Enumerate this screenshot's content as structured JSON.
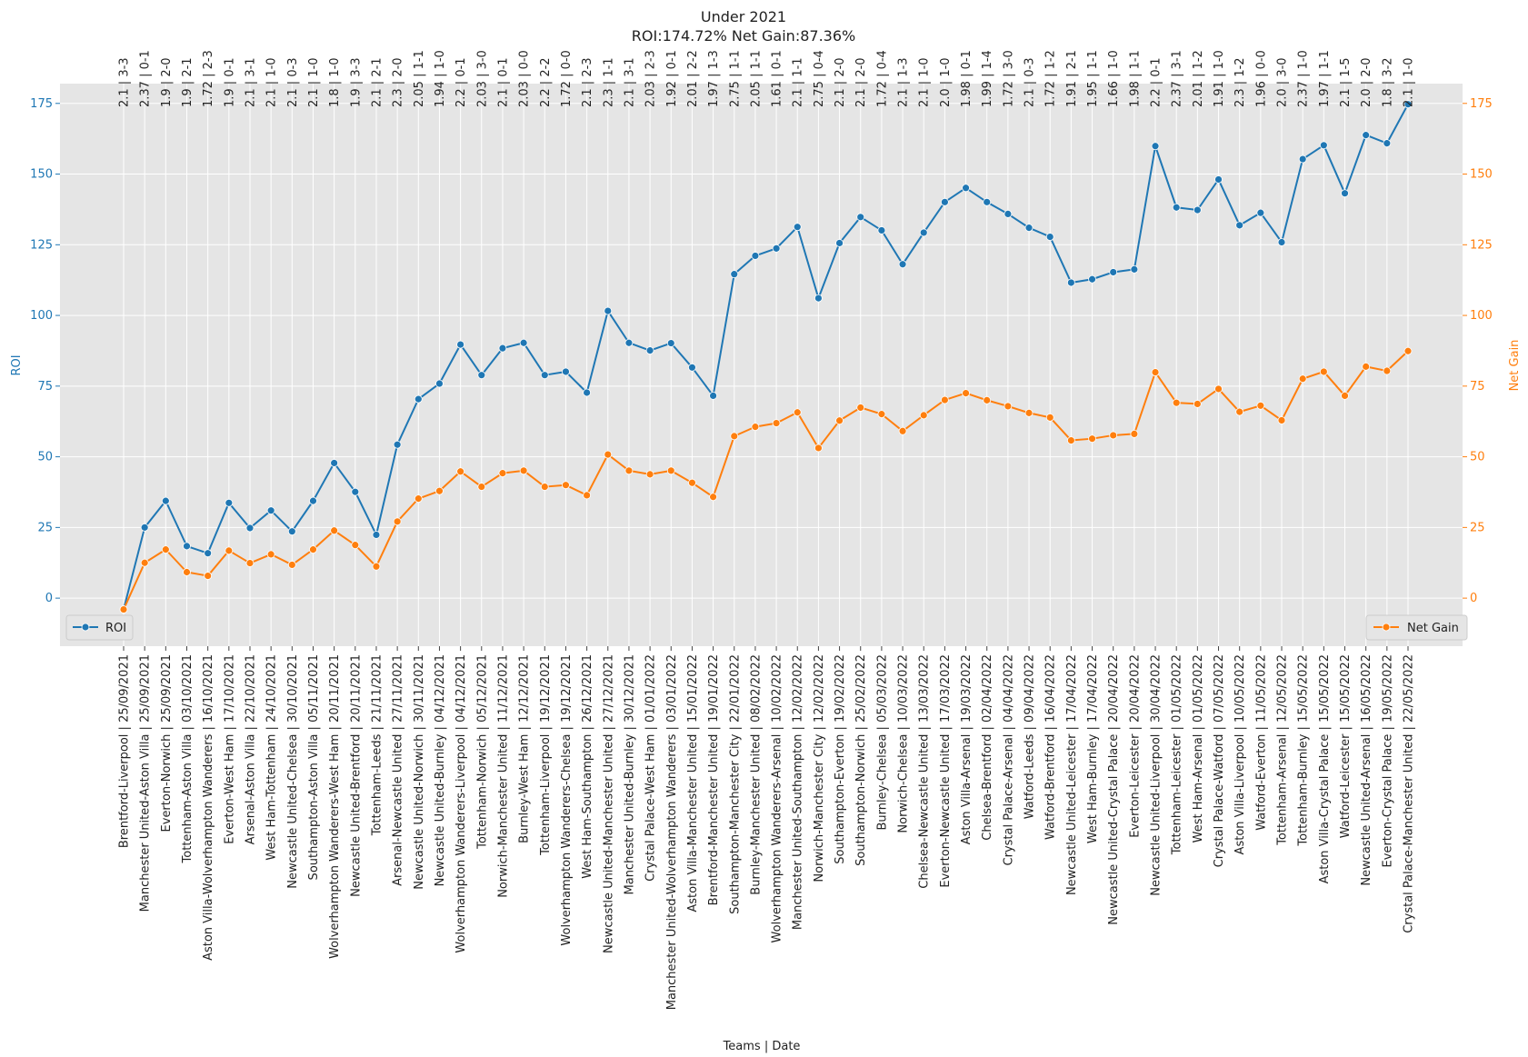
{
  "chart_data": {
    "type": "line",
    "title": "Under 2021",
    "subtitle": "ROI:174.72% Net Gain:87.36%",
    "xlabel": "Teams | Date",
    "ylabel_left": "ROI",
    "ylabel_right": "Net Gain",
    "ylim": [
      -17,
      182
    ],
    "yticks": [
      0,
      25,
      50,
      75,
      100,
      125,
      150,
      175
    ],
    "grid": true,
    "legend_left": "bottom-left",
    "legend_right": "bottom-right",
    "colors": {
      "roi": "#1f77b4",
      "net_gain": "#ff7f0e",
      "plot_bg": "#e5e5e5",
      "grid": "#ffffff"
    },
    "categories": [
      "Brentford-Liverpool | 25/09/2021",
      "Manchester United-Aston Villa | 25/09/2021",
      "Everton-Norwich | 25/09/2021",
      "Tottenham-Aston Villa | 03/10/2021",
      "Aston Villa-Wolverhampton Wanderers | 16/10/2021",
      "Everton-West Ham | 17/10/2021",
      "Arsenal-Aston Villa | 22/10/2021",
      "West Ham-Tottenham | 24/10/2021",
      "Newcastle United-Chelsea | 30/10/2021",
      "Southampton-Aston Villa | 05/11/2021",
      "Wolverhampton Wanderers-West Ham | 20/11/2021",
      "Newcastle United-Brentford | 20/11/2021",
      "Tottenham-Leeds | 21/11/2021",
      "Arsenal-Newcastle United | 27/11/2021",
      "Newcastle United-Norwich | 30/11/2021",
      "Newcastle United-Burnley | 04/12/2021",
      "Wolverhampton Wanderers-Liverpool | 04/12/2021",
      "Tottenham-Norwich | 05/12/2021",
      "Norwich-Manchester United | 11/12/2021",
      "Burnley-West Ham | 12/12/2021",
      "Tottenham-Liverpool | 19/12/2021",
      "Wolverhampton Wanderers-Chelsea | 19/12/2021",
      "West Ham-Southampton | 26/12/2021",
      "Newcastle United-Manchester United | 27/12/2021",
      "Manchester United-Burnley | 30/12/2021",
      "Crystal Palace-West Ham | 01/01/2022",
      "Manchester United-Wolverhampton Wanderers | 03/01/2022",
      "Aston Villa-Manchester United | 15/01/2022",
      "Brentford-Manchester United | 19/01/2022",
      "Southampton-Manchester City | 22/01/2022",
      "Burnley-Manchester United | 08/02/2022",
      "Wolverhampton Wanderers-Arsenal | 10/02/2022",
      "Manchester United-Southampton | 12/02/2022",
      "Norwich-Manchester City | 12/02/2022",
      "Southampton-Everton | 19/02/2022",
      "Southampton-Norwich | 25/02/2022",
      "Burnley-Chelsea | 05/03/2022",
      "Norwich-Chelsea | 10/03/2022",
      "Chelsea-Newcastle United | 13/03/2022",
      "Everton-Newcastle United | 17/03/2022",
      "Aston Villa-Arsenal | 19/03/2022",
      "Chelsea-Brentford | 02/04/2022",
      "Crystal Palace-Arsenal | 04/04/2022",
      "Watford-Leeds | 09/04/2022",
      "Watford-Brentford | 16/04/2022",
      "Newcastle United-Leicester | 17/04/2022",
      "West Ham-Burnley | 17/04/2022",
      "Newcastle United-Crystal Palace | 20/04/2022",
      "Everton-Leicester | 20/04/2022",
      "Newcastle United-Liverpool | 30/04/2022",
      "Tottenham-Leicester | 01/05/2022",
      "West Ham-Arsenal | 01/05/2022",
      "Crystal Palace-Watford | 07/05/2022",
      "Aston Villa-Liverpool | 10/05/2022",
      "Watford-Everton | 11/05/2022",
      "Tottenham-Arsenal | 12/05/2022",
      "Tottenham-Burnley | 15/05/2022",
      "Aston Villa-Crystal Palace | 15/05/2022",
      "Watford-Leicester | 15/05/2022",
      "Newcastle United-Arsenal | 16/05/2022",
      "Everton-Crystal Palace | 19/05/2022",
      "Crystal Palace-Manchester United | 22/05/2022"
    ],
    "top_labels": [
      "2.1 | 3-3",
      "2.37 | 0-1",
      "1.9 | 2-0",
      "1.9 | 2-1",
      "1.72 | 2-3",
      "1.9 | 0-1",
      "2.1 | 3-1",
      "2.1 | 1-0",
      "2.1 | 0-3",
      "2.1 | 1-0",
      "1.8 | 1-0",
      "1.9 | 3-3",
      "2.1 | 2-1",
      "2.3 | 2-0",
      "2.05 | 1-1",
      "1.94 | 1-0",
      "2.2 | 0-1",
      "2.03 | 3-0",
      "2.1 | 0-1",
      "2.03 | 0-0",
      "2.2 | 2-2",
      "1.72 | 0-0",
      "2.1 | 2-3",
      "2.3 | 1-1",
      "2.1 | 3-1",
      "2.03 | 2-3",
      "1.92 | 0-1",
      "2.01 | 2-2",
      "1.97 | 1-3",
      "2.75 | 1-1",
      "2.05 | 1-1",
      "1.61 | 0-1",
      "2.1 | 1-1",
      "2.75 | 0-4",
      "2.1 | 2-0",
      "2.1 | 2-0",
      "1.72 | 0-4",
      "2.1 | 1-3",
      "2.1 | 1-0",
      "2.0 | 1-0",
      "1.98 | 0-1",
      "1.99 | 1-4",
      "1.72 | 3-0",
      "2.1 | 0-3",
      "1.72 | 1-2",
      "1.91 | 2-1",
      "1.95 | 1-1",
      "1.66 | 1-0",
      "1.98 | 1-1",
      "2.2 | 0-1",
      "2.37 | 3-1",
      "2.01 | 1-2",
      "1.91 | 1-0",
      "2.3 | 1-2",
      "1.96 | 0-0",
      "2.0 | 3-0",
      "2.37 | 1-0",
      "1.97 | 1-1",
      "2.1 | 1-5",
      "2.0 | 2-0",
      "1.8 | 3-2",
      "2.1 | 1-0"
    ],
    "series": [
      {
        "name": "ROI",
        "values": [
          -4,
          25,
          34.4,
          18.4,
          15.9,
          33.7,
          24.8,
          31,
          23.6,
          34.4,
          47.8,
          37.6,
          22.4,
          54.3,
          70.4,
          75.9,
          89.7,
          78.9,
          88.4,
          90.3,
          78.9,
          80.1,
          72.7,
          101.6,
          90.3,
          87.6,
          90.2,
          81.6,
          71.6,
          114.6,
          121.1,
          123.7,
          131.3,
          106.1,
          125.6,
          134.8,
          130.1,
          118.1,
          129.3,
          140.1,
          145.1,
          140.1,
          135.9,
          131,
          127.8,
          111.6,
          112.8,
          115.3,
          116.3,
          159.9,
          138.2,
          137.3,
          148.1,
          131.9,
          136.3,
          125.9,
          155.3,
          160.2,
          143.2,
          163.8,
          160.9,
          174.7
        ]
      },
      {
        "name": "Net Gain",
        "values": [
          -4,
          12.5,
          17.2,
          9.2,
          7.9,
          16.8,
          12.4,
          15.5,
          11.8,
          17.2,
          23.9,
          18.8,
          11.2,
          27.1,
          35.2,
          37.9,
          44.8,
          39.4,
          44.2,
          45.1,
          39.4,
          40,
          36.4,
          50.8,
          45.1,
          43.8,
          45.1,
          40.8,
          35.8,
          57.3,
          60.6,
          61.9,
          65.7,
          53.1,
          62.8,
          67.4,
          65.1,
          59.1,
          64.7,
          70.1,
          72.5,
          70,
          67.9,
          65.5,
          63.9,
          55.8,
          56.4,
          57.6,
          58.1,
          79.9,
          69.1,
          68.7,
          74,
          65.9,
          68.1,
          62.9,
          77.6,
          80.1,
          71.6,
          81.9,
          80.4,
          87.4
        ]
      }
    ]
  }
}
